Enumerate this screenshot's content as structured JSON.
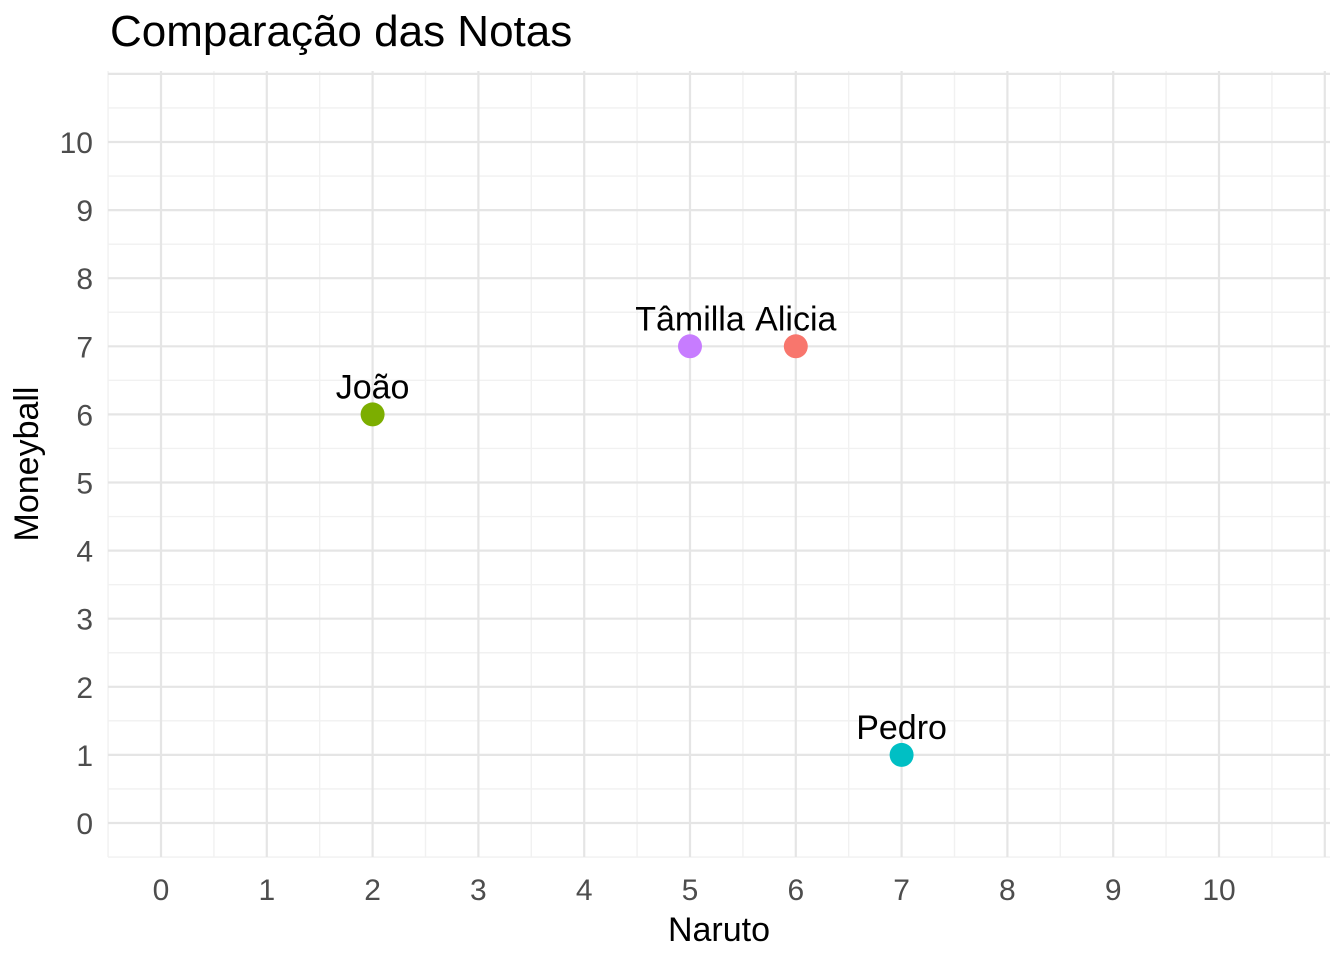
{
  "chart_data": {
    "type": "scatter",
    "title": "Comparação das Notas",
    "xlabel": "Naruto",
    "ylabel": "Moneyball",
    "xlim": [
      -0.5,
      11.05
    ],
    "ylim": [
      -0.5,
      11.05
    ],
    "x_ticks": [
      0,
      1,
      2,
      3,
      4,
      5,
      6,
      7,
      8,
      9,
      10
    ],
    "y_ticks": [
      0,
      1,
      2,
      3,
      4,
      5,
      6,
      7,
      8,
      9,
      10
    ],
    "grid": {
      "major": true,
      "minor": true,
      "major_values": [
        0,
        1,
        2,
        3,
        4,
        5,
        6,
        7,
        8,
        9,
        10,
        11
      ],
      "minor_values": [
        -0.5,
        0.5,
        1.5,
        2.5,
        3.5,
        4.5,
        5.5,
        6.5,
        7.5,
        8.5,
        9.5,
        10.5
      ]
    },
    "legend": "none",
    "points": [
      {
        "name": "João",
        "x": 2,
        "y": 6,
        "color": "#7CAE00"
      },
      {
        "name": "Tâmilla",
        "x": 5,
        "y": 7,
        "color": "#C77CFF"
      },
      {
        "name": "Alicia",
        "x": 6,
        "y": 7,
        "color": "#F8766D"
      },
      {
        "name": "Pedro",
        "x": 7,
        "y": 1,
        "color": "#00BFC4"
      }
    ]
  },
  "colors": {
    "background": "#FFFFFF",
    "grid_major": "#E5E5E5",
    "grid_minor": "#F1F1F1",
    "tick_text": "#4D4D4D",
    "title_text": "#000000",
    "axis_title_text": "#000000",
    "label_text": "#000000"
  }
}
